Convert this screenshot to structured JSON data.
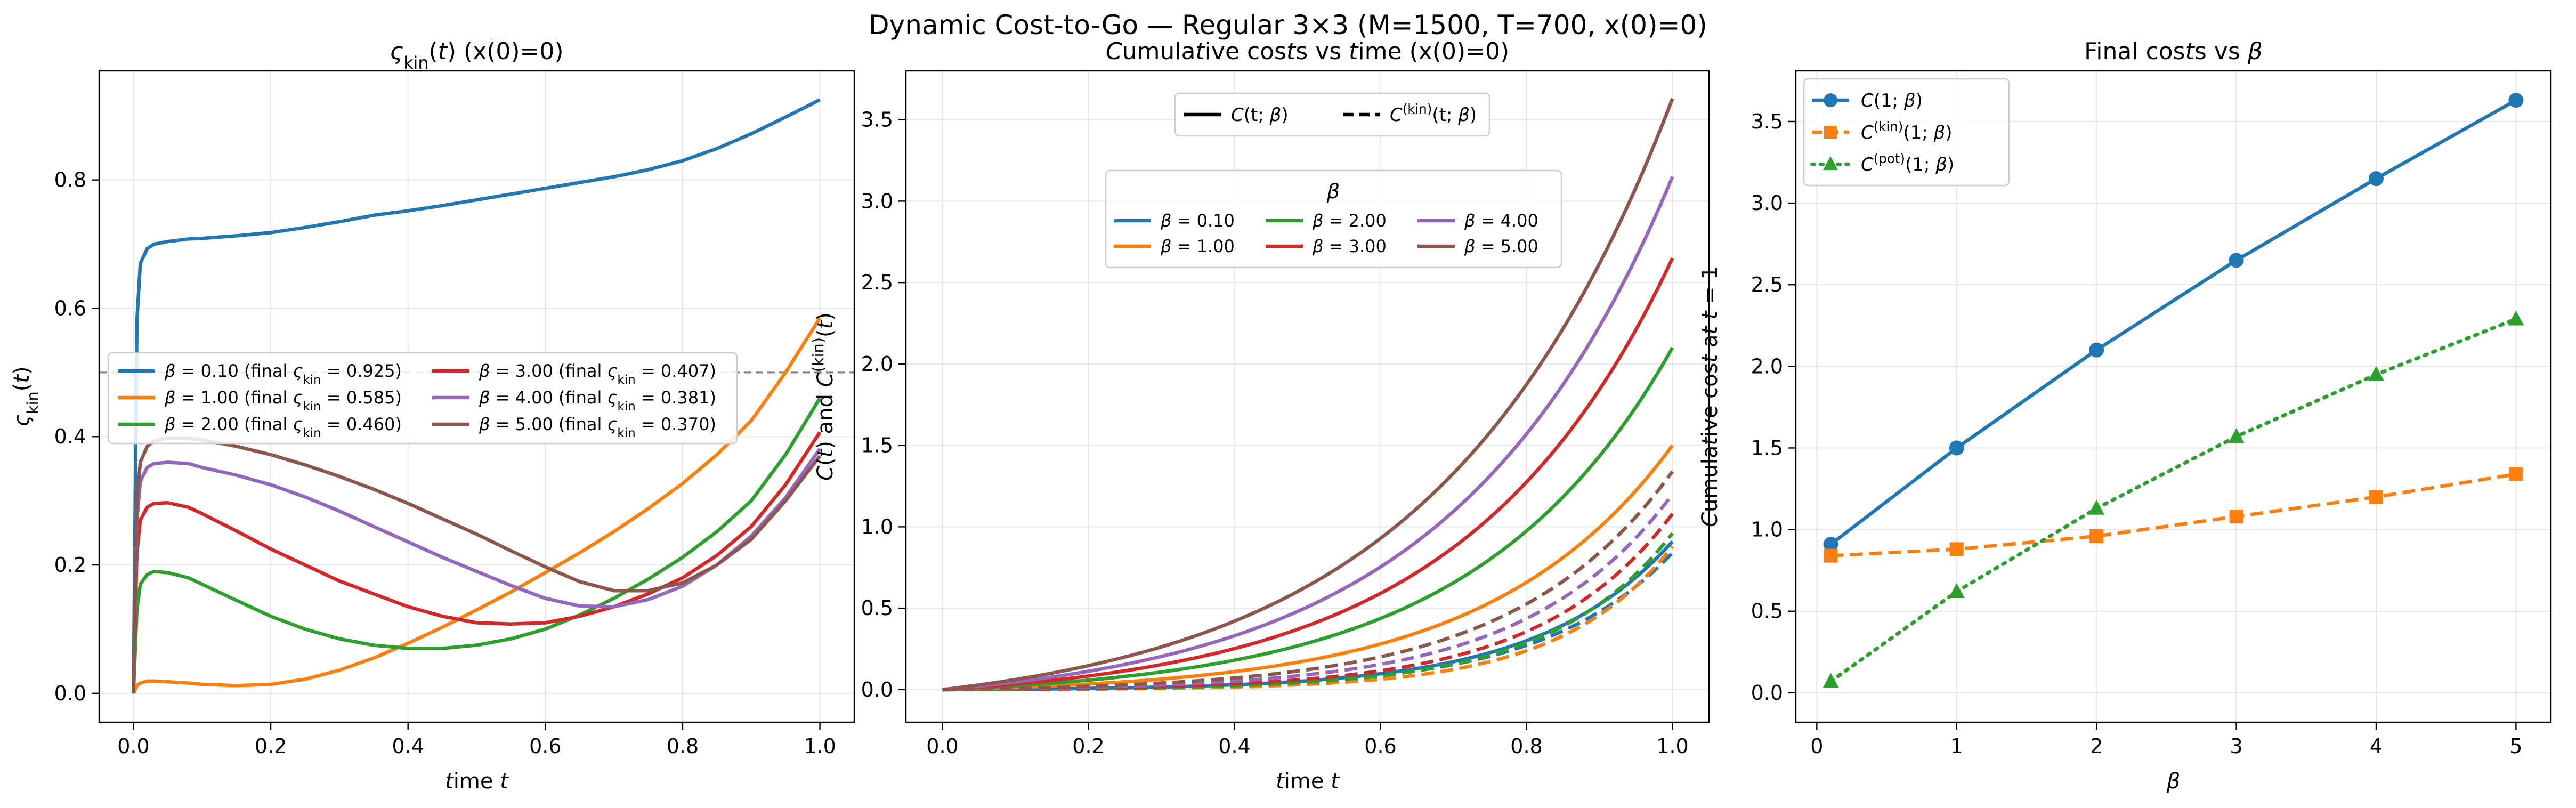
{
  "suptitle": "Dynamic Cost-to-Go — Regular 3×3  (M=1500, T=700, x(0)=0)",
  "colors": {
    "blue": "#1f77b4",
    "orange": "#ff7f0e",
    "green": "#2ca02c",
    "red": "#d62728",
    "purple": "#9467bd",
    "brown": "#8c564b",
    "grid": "#e6e6e6",
    "ref_line": "#808080"
  },
  "chart_data": [
    {
      "type": "line",
      "title": "ς_kin(t) (x(0)=0)",
      "xlabel": "time t",
      "ylabel": "ς_kin(t)",
      "xlim": [
        -0.05,
        1.05
      ],
      "ylim": [
        -0.045,
        0.97
      ],
      "xticks": [
        "0.0",
        "0.2",
        "0.4",
        "0.6",
        "0.8",
        "1.0"
      ],
      "yticks": [
        "0.0",
        "0.2",
        "0.4",
        "0.6",
        "0.8"
      ],
      "reference_line": {
        "y": 0.5,
        "style": "dashed"
      },
      "legend": {
        "location": "center-left",
        "ncol": 2
      },
      "x": [
        0.0,
        0.005,
        0.01,
        0.02,
        0.03,
        0.05,
        0.08,
        0.1,
        0.15,
        0.2,
        0.25,
        0.3,
        0.35,
        0.4,
        0.45,
        0.5,
        0.55,
        0.6,
        0.65,
        0.7,
        0.75,
        0.8,
        0.85,
        0.9,
        0.95,
        1.0
      ],
      "series": [
        {
          "name": "β = 0.10 (final ς_kin = 0.925)",
          "color": "blue",
          "style": "solid",
          "values": [
            0.0,
            0.58,
            0.67,
            0.693,
            0.7,
            0.704,
            0.708,
            0.709,
            0.713,
            0.718,
            0.726,
            0.735,
            0.745,
            0.752,
            0.76,
            0.769,
            0.778,
            0.787,
            0.796,
            0.805,
            0.816,
            0.83,
            0.849,
            0.872,
            0.898,
            0.925
          ]
        },
        {
          "name": "β = 1.00 (final ς_kin = 0.585)",
          "color": "orange",
          "style": "solid",
          "values": [
            0.0,
            0.012,
            0.016,
            0.019,
            0.019,
            0.018,
            0.016,
            0.014,
            0.012,
            0.014,
            0.022,
            0.036,
            0.055,
            0.078,
            0.103,
            0.13,
            0.158,
            0.188,
            0.219,
            0.252,
            0.288,
            0.327,
            0.372,
            0.425,
            0.5,
            0.585
          ]
        },
        {
          "name": "β = 2.00 (final ς_kin = 0.460)",
          "color": "green",
          "style": "solid",
          "values": [
            0.0,
            0.13,
            0.17,
            0.185,
            0.19,
            0.188,
            0.18,
            0.17,
            0.145,
            0.12,
            0.1,
            0.085,
            0.075,
            0.07,
            0.07,
            0.075,
            0.085,
            0.1,
            0.122,
            0.148,
            0.178,
            0.212,
            0.252,
            0.3,
            0.372,
            0.46
          ]
        },
        {
          "name": "β = 3.00 (final ς_kin = 0.407)",
          "color": "red",
          "style": "solid",
          "values": [
            0.0,
            0.22,
            0.27,
            0.29,
            0.296,
            0.297,
            0.29,
            0.28,
            0.253,
            0.225,
            0.2,
            0.175,
            0.155,
            0.135,
            0.12,
            0.11,
            0.108,
            0.11,
            0.12,
            0.135,
            0.155,
            0.18,
            0.215,
            0.26,
            0.325,
            0.407
          ]
        },
        {
          "name": "β = 4.00 (final ς_kin = 0.381)",
          "color": "purple",
          "style": "solid",
          "values": [
            0.0,
            0.27,
            0.33,
            0.352,
            0.358,
            0.36,
            0.358,
            0.352,
            0.34,
            0.325,
            0.306,
            0.284,
            0.26,
            0.236,
            0.212,
            0.19,
            0.168,
            0.148,
            0.136,
            0.135,
            0.146,
            0.167,
            0.2,
            0.245,
            0.305,
            0.381
          ]
        },
        {
          "name": "β = 5.00 (final ς_kin = 0.370)",
          "color": "brown",
          "style": "solid",
          "values": [
            0.0,
            0.3,
            0.36,
            0.385,
            0.393,
            0.398,
            0.398,
            0.395,
            0.385,
            0.372,
            0.356,
            0.338,
            0.318,
            0.296,
            0.272,
            0.248,
            0.222,
            0.197,
            0.174,
            0.16,
            0.16,
            0.172,
            0.2,
            0.24,
            0.3,
            0.37
          ]
        }
      ]
    },
    {
      "type": "line",
      "title": "Cumulative costs vs time (x(0)=0)",
      "xlabel": "time t",
      "ylabel": "C(t)  and  C^(kin)(t)",
      "xlim": [
        -0.05,
        1.05
      ],
      "ylim": [
        -0.2,
        3.8
      ],
      "xticks": [
        "0.0",
        "0.2",
        "0.4",
        "0.6",
        "0.8",
        "1.0"
      ],
      "yticks": [
        "0.0",
        "0.5",
        "1.0",
        "1.5",
        "2.0",
        "2.5",
        "3.0",
        "3.5"
      ],
      "style_legend": {
        "location": "top-center",
        "entries": [
          {
            "label": "C(t; β)",
            "style": "solid"
          },
          {
            "label": "C^(kin)(t; β)",
            "style": "dashed"
          }
        ]
      },
      "color_legend": {
        "title": "β",
        "location": "upper-center",
        "ncol": 3,
        "entries": [
          {
            "label": "β = 0.10",
            "color": "blue"
          },
          {
            "label": "β = 1.00",
            "color": "orange"
          },
          {
            "label": "β = 2.00",
            "color": "green"
          },
          {
            "label": "β = 3.00",
            "color": "red"
          },
          {
            "label": "β = 4.00",
            "color": "purple"
          },
          {
            "label": "β = 5.00",
            "color": "brown"
          }
        ]
      },
      "curve_model": "value(t) = final * (exp(k*t) - 1) / (exp(k) - 1)",
      "series": [
        {
          "name": "C(t; 0.10)",
          "color": "blue",
          "style": "solid",
          "final": 0.91,
          "k": 5.5
        },
        {
          "name": "C(t; 1.00)",
          "color": "orange",
          "style": "solid",
          "final": 1.5,
          "k": 4.0
        },
        {
          "name": "C(t; 2.00)",
          "color": "green",
          "style": "solid",
          "final": 2.1,
          "k": 3.7
        },
        {
          "name": "C(t; 3.00)",
          "color": "red",
          "style": "solid",
          "final": 2.65,
          "k": 3.5
        },
        {
          "name": "C(t; 4.00)",
          "color": "purple",
          "style": "solid",
          "final": 3.15,
          "k": 3.3
        },
        {
          "name": "C(t; 5.00)",
          "color": "brown",
          "style": "solid",
          "final": 3.63,
          "k": 3.1
        },
        {
          "name": "C_kin(t; 0.10)",
          "color": "blue",
          "style": "dashed",
          "final": 0.84,
          "k": 5.6
        },
        {
          "name": "C_kin(t; 1.00)",
          "color": "orange",
          "style": "dashed",
          "final": 0.88,
          "k": 6.5
        },
        {
          "name": "C_kin(t; 2.00)",
          "color": "green",
          "style": "dashed",
          "final": 0.96,
          "k": 6.0
        },
        {
          "name": "C_kin(t; 3.00)",
          "color": "red",
          "style": "dashed",
          "final": 1.08,
          "k": 5.5
        },
        {
          "name": "C_kin(t; 4.00)",
          "color": "purple",
          "style": "dashed",
          "final": 1.2,
          "k": 5.0
        },
        {
          "name": "C_kin(t; 5.00)",
          "color": "brown",
          "style": "dashed",
          "final": 1.34,
          "k": 4.6
        }
      ]
    },
    {
      "type": "line",
      "title": "Final costs vs β",
      "xlabel": "β",
      "ylabel": "Cumulative cost at t = 1",
      "xlim": [
        -0.15,
        5.25
      ],
      "ylim": [
        -0.18,
        3.81
      ],
      "xticks": [
        "0",
        "1",
        "2",
        "3",
        "4",
        "5"
      ],
      "yticks": [
        "0.0",
        "0.5",
        "1.0",
        "1.5",
        "2.0",
        "2.5",
        "3.0",
        "3.5"
      ],
      "legend": {
        "location": "upper-left"
      },
      "x": [
        0.1,
        1,
        2,
        3,
        4,
        5
      ],
      "series": [
        {
          "name": "C(1; β)",
          "color": "blue",
          "style": "solid",
          "marker": "circle",
          "values": [
            0.91,
            1.5,
            2.1,
            2.65,
            3.15,
            3.63
          ]
        },
        {
          "name": "C^(kin)(1; β)",
          "color": "orange",
          "style": "dashed",
          "marker": "square",
          "values": [
            0.84,
            0.88,
            0.96,
            1.08,
            1.2,
            1.34
          ]
        },
        {
          "name": "C^(pot)(1; β)",
          "color": "green",
          "style": "dotted",
          "marker": "triangle",
          "values": [
            0.07,
            0.62,
            1.13,
            1.57,
            1.95,
            2.29
          ]
        }
      ]
    }
  ]
}
